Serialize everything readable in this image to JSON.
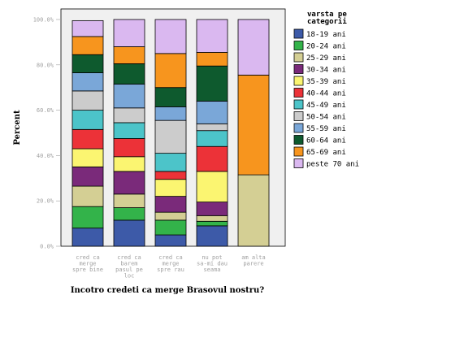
{
  "chart_data": {
    "type": "bar",
    "stacked": true,
    "ylabel": "Percent",
    "xlabel": "Incotro credeti ca merge Brasovul nostru?",
    "ylim": [
      0,
      100
    ],
    "yticks": [
      "0.0%",
      "20.0%",
      "40.0%",
      "60.0%",
      "80.0%",
      "100.0%"
    ],
    "grid": false,
    "legend_position": "right",
    "legend_title": [
      "varsta pe",
      "categorii"
    ],
    "categories": [
      [
        "cred ca",
        "merge",
        "spre bine"
      ],
      [
        "cred ca",
        "barem",
        "pasul pe",
        "loc"
      ],
      [
        "cred ca",
        "merge",
        "spre rau"
      ],
      [
        "nu pot",
        "sa-mi dau",
        "seama"
      ],
      [
        "am alta",
        "parere"
      ]
    ],
    "series": [
      {
        "name": "18-19 ani",
        "color": "#3d5aa8",
        "values": [
          8,
          11.5,
          5,
          9,
          0
        ]
      },
      {
        "name": "20-24 ani",
        "color": "#33b34a",
        "values": [
          9.5,
          5.5,
          6.5,
          2,
          0
        ]
      },
      {
        "name": "25-29 ani",
        "color": "#d4cf94",
        "values": [
          9,
          6,
          3.5,
          2.5,
          31.5
        ]
      },
      {
        "name": "30-34 ani",
        "color": "#7a2a7a",
        "values": [
          8.5,
          10,
          7,
          6,
          0
        ]
      },
      {
        "name": "35-39 ani",
        "color": "#fbf571",
        "values": [
          8,
          6.5,
          7.5,
          13.5,
          0
        ]
      },
      {
        "name": "40-44 ani",
        "color": "#ec3238",
        "values": [
          8.5,
          8,
          3.5,
          11,
          0
        ]
      },
      {
        "name": "45-49 ani",
        "color": "#4cc4c9",
        "values": [
          8.5,
          7,
          8,
          7,
          0
        ]
      },
      {
        "name": "50-54 ani",
        "color": "#cccccc",
        "values": [
          8.5,
          6.5,
          14.5,
          3,
          0
        ]
      },
      {
        "name": "55-59 ani",
        "color": "#7aa7d8",
        "values": [
          8,
          10.5,
          6,
          10,
          0
        ]
      },
      {
        "name": "60-64 ani",
        "color": "#0e5a2e",
        "values": [
          8,
          9,
          8.5,
          15.5,
          0
        ]
      },
      {
        "name": "65-69 ani",
        "color": "#f7951e",
        "values": [
          8,
          7.5,
          15,
          6,
          44
        ]
      },
      {
        "name": "peste 70 ani",
        "color": "#dab8f0",
        "values": [
          7,
          12,
          15,
          14.5,
          24.5
        ]
      }
    ]
  }
}
